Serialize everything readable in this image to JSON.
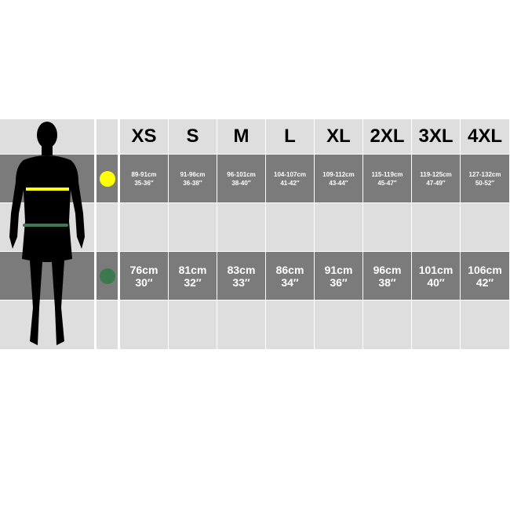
{
  "sizes": [
    "XS",
    "S",
    "M",
    "L",
    "XL",
    "2XL",
    "3XL",
    "4XL"
  ],
  "chest": {
    "marker_color": "#ffff00",
    "cm": [
      "89-91cm",
      "91-96cm",
      "96-101cm",
      "104-107cm",
      "109-112cm",
      "115-119cm",
      "119-125cm",
      "127-132cm"
    ],
    "inches": [
      "35-36″",
      "36-38″",
      "38-40″",
      "41-42″",
      "43-44″",
      "45-47″",
      "47-49″",
      "50-52″"
    ]
  },
  "waist": {
    "marker_color": "#3a7a4e",
    "cm": [
      "76cm",
      "81cm",
      "83cm",
      "86cm",
      "91cm",
      "96cm",
      "101cm",
      "106cm"
    ],
    "inches": [
      "30″",
      "32″",
      "33″",
      "34″",
      "36″",
      "38″",
      "40″",
      "42″"
    ]
  }
}
